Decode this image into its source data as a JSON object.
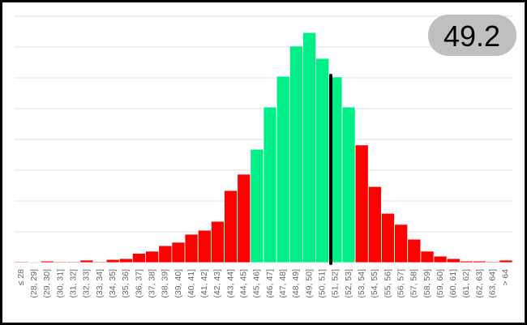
{
  "chart_data": {
    "type": "bar",
    "annotation": "49.2",
    "categories": [
      "≤ 28",
      "(28, 29]",
      "(29, 30]",
      "(30, 31]",
      "(31, 32]",
      "(32, 33]",
      "(33, 34]",
      "(34, 35]",
      "(35, 36]",
      "(36, 37]",
      "(37, 38]",
      "(38, 39]",
      "(39, 40]",
      "(40, 41]",
      "(41, 42]",
      "(42, 43]",
      "(43, 44]",
      "(44, 45]",
      "(45, 46]",
      "(46, 47]",
      "(47, 48]",
      "(48, 49]",
      "(49, 50]",
      "(50, 51]",
      "(51, 52]",
      "(52, 53]",
      "(53, 54]",
      "(54, 55]",
      "(55, 56]",
      "(56, 57]",
      "(57, 58]",
      "(58, 59]",
      "(59, 60]",
      "(60, 61]",
      "(61, 62]",
      "(62, 63]",
      "(63, 64]",
      "> 64"
    ],
    "values": [
      0.03,
      0,
      0.05,
      0.03,
      0.03,
      0.08,
      0.03,
      0.1,
      0.13,
      0.3,
      0.37,
      0.55,
      0.66,
      0.92,
      1.05,
      1.34,
      2.34,
      2.87,
      3.68,
      5.05,
      6.05,
      7.03,
      7.47,
      6.63,
      6.03,
      5.05,
      3.82,
      2.47,
      1.6,
      1.24,
      0.76,
      0.37,
      0.21,
      0.13,
      0.05,
      0.05,
      0.03,
      0.08
    ],
    "colors": [
      "#ff0000",
      "#ff0000",
      "#ff0000",
      "#ff0000",
      "#ff0000",
      "#ff0000",
      "#ff0000",
      "#ff0000",
      "#ff0000",
      "#ff0000",
      "#ff0000",
      "#ff0000",
      "#ff0000",
      "#ff0000",
      "#ff0000",
      "#ff0000",
      "#ff0000",
      "#ff0000",
      "#00ee88",
      "#00ee88",
      "#00ee88",
      "#00ee88",
      "#00ee88",
      "#00ee88",
      "#00ee88",
      "#00ee88",
      "#ff0000",
      "#ff0000",
      "#ff0000",
      "#ff0000",
      "#ff0000",
      "#ff0000",
      "#ff0000",
      "#ff0000",
      "#ff0000",
      "#ff0000",
      "#ff0000",
      "#ff0000"
    ],
    "ylim": [
      0,
      8
    ],
    "yticks": [
      0,
      1,
      2,
      3,
      4,
      5,
      6,
      7,
      8
    ],
    "grid": true
  }
}
